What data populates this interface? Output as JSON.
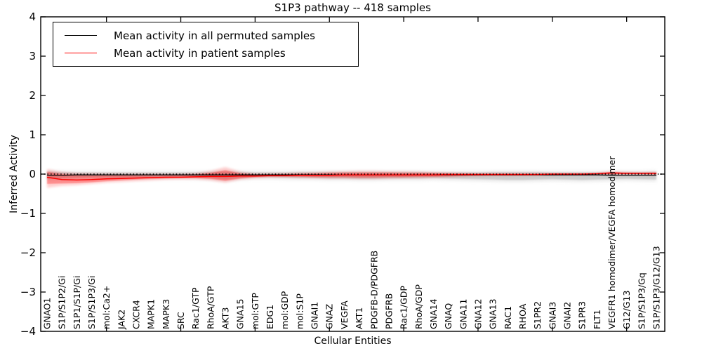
{
  "accent_colors": {
    "permuted": "#000000",
    "patient": "#ff0000",
    "permuted_band": "#a0a0a0",
    "patient_band": "#ff0000"
  },
  "header": {
    "title": "S1P3 pathway -- 418 samples"
  },
  "legend": {
    "entries": [
      {
        "label": "Mean activity in all permuted samples",
        "color": "#000000"
      },
      {
        "label": "Mean activity in patient samples",
        "color": "#ff0000"
      }
    ]
  },
  "chart_data": {
    "type": "line",
    "title": "S1P3 pathway -- 418 samples",
    "xlabel": "Cellular Entities",
    "ylabel": "Inferred Activity",
    "ylim": [
      -4,
      4
    ],
    "yticks": [
      4,
      3,
      2,
      1,
      0,
      -1,
      -2,
      -3,
      -4
    ],
    "ytick_labels": [
      "4",
      "3",
      "2",
      "1",
      "0",
      "−1",
      "−2",
      "−3",
      "−4"
    ],
    "xtick_positions": [
      4,
      9,
      14,
      19,
      24,
      29,
      34,
      39
    ],
    "grid": false,
    "legend_position": "upper left",
    "zero_line": {
      "y": 0,
      "style": "dotted",
      "color": "#000000"
    },
    "categories": [
      "GNAO1",
      "S1P/S1P2/Gi",
      "S1P1/S1P/Gi",
      "S1P/S1P3/Gi",
      "mol:Ca2+",
      "JAK2",
      "CXCR4",
      "MAPK1",
      "MAPK3",
      "SRC",
      "Rac1/GTP",
      "RhoA/GTP",
      "AKT3",
      "GNA15",
      "mol:GTP",
      "EDG1",
      "mol:GDP",
      "mol:S1P",
      "GNAI1",
      "GNAZ",
      "VEGFA",
      "AKT1",
      "PDGFB-D/PDGFRB",
      "PDGFRB",
      "Rac1/GDP",
      "RhoA/GDP",
      "GNA14",
      "GNAQ",
      "GNA11",
      "GNA12",
      "GNA13",
      "RAC1",
      "RHOA",
      "S1PR2",
      "GNAI3",
      "GNAI2",
      "S1PR3",
      "FLT1",
      "VEGFR1 homodimer/VEGFA homodimer",
      "G12/G13",
      "S1P/S1P3/Gq",
      "S1P/S1P3/G12/G13"
    ],
    "series": [
      {
        "name": "Mean activity in all permuted samples",
        "color": "#000000",
        "values": [
          -0.03,
          -0.03,
          -0.02,
          -0.02,
          -0.02,
          -0.02,
          -0.02,
          -0.02,
          -0.02,
          -0.02,
          -0.02,
          -0.02,
          -0.02,
          -0.02,
          -0.02,
          -0.02,
          -0.02,
          -0.02,
          -0.02,
          -0.02,
          -0.02,
          -0.02,
          -0.02,
          -0.02,
          -0.02,
          -0.02,
          -0.02,
          -0.02,
          -0.02,
          -0.02,
          -0.02,
          -0.02,
          -0.02,
          -0.02,
          -0.02,
          -0.02,
          -0.02,
          -0.02,
          -0.03,
          -0.03,
          -0.03,
          -0.03
        ],
        "band_upper": [
          0.06,
          0.05,
          0.04,
          0.04,
          0.04,
          0.04,
          0.04,
          0.04,
          0.04,
          0.04,
          0.04,
          0.05,
          0.06,
          0.05,
          0.04,
          0.04,
          0.04,
          0.05,
          0.05,
          0.05,
          0.05,
          0.05,
          0.05,
          0.05,
          0.05,
          0.05,
          0.04,
          0.04,
          0.04,
          0.04,
          0.05,
          0.05,
          0.05,
          0.05,
          0.04,
          0.04,
          0.04,
          0.04,
          0.05,
          0.05,
          0.05,
          0.06
        ],
        "band_lower": [
          -0.12,
          -0.1,
          -0.09,
          -0.08,
          -0.08,
          -0.08,
          -0.08,
          -0.08,
          -0.08,
          -0.08,
          -0.09,
          -0.1,
          -0.13,
          -0.1,
          -0.08,
          -0.08,
          -0.09,
          -0.1,
          -0.1,
          -0.11,
          -0.11,
          -0.12,
          -0.12,
          -0.11,
          -0.11,
          -0.11,
          -0.1,
          -0.11,
          -0.12,
          -0.13,
          -0.14,
          -0.15,
          -0.15,
          -0.14,
          -0.13,
          -0.14,
          -0.15,
          -0.14,
          -0.13,
          -0.12,
          -0.13,
          -0.14
        ]
      },
      {
        "name": "Mean activity in patient samples",
        "color": "#ff0000",
        "values": [
          -0.08,
          -0.14,
          -0.15,
          -0.14,
          -0.12,
          -0.11,
          -0.1,
          -0.09,
          -0.08,
          -0.08,
          -0.07,
          -0.06,
          -0.06,
          -0.05,
          -0.05,
          -0.04,
          -0.04,
          -0.03,
          -0.03,
          -0.03,
          -0.02,
          -0.02,
          -0.02,
          -0.02,
          -0.02,
          -0.02,
          -0.02,
          -0.01,
          -0.01,
          -0.01,
          -0.01,
          -0.01,
          -0.01,
          -0.01,
          0.0,
          0.0,
          0.0,
          0.01,
          0.03,
          0.02,
          0.02,
          0.02
        ],
        "band_outer_upper": [
          0.13,
          0.05,
          0.02,
          0.01,
          0.0,
          0.0,
          0.0,
          0.0,
          0.0,
          0.0,
          0.02,
          0.08,
          0.18,
          0.06,
          0.01,
          0.01,
          0.02,
          0.03,
          0.04,
          0.06,
          0.07,
          0.08,
          0.08,
          0.07,
          0.07,
          0.06,
          0.05,
          0.04,
          0.03,
          0.02,
          0.02,
          0.02,
          0.02,
          0.02,
          0.02,
          0.02,
          0.02,
          0.03,
          0.07,
          0.05,
          0.04,
          0.05
        ],
        "band_outer_lower": [
          -0.35,
          -0.3,
          -0.28,
          -0.25,
          -0.22,
          -0.2,
          -0.18,
          -0.16,
          -0.14,
          -0.13,
          -0.13,
          -0.16,
          -0.22,
          -0.14,
          -0.1,
          -0.08,
          -0.08,
          -0.09,
          -0.1,
          -0.11,
          -0.11,
          -0.12,
          -0.12,
          -0.11,
          -0.1,
          -0.1,
          -0.09,
          -0.08,
          -0.06,
          -0.05,
          -0.04,
          -0.04,
          -0.03,
          -0.03,
          -0.03,
          -0.02,
          -0.02,
          -0.02,
          -0.02,
          -0.02,
          -0.02,
          -0.03
        ],
        "band_inner_upper": [
          0.06,
          0.0,
          -0.02,
          -0.03,
          -0.03,
          -0.03,
          -0.03,
          -0.03,
          -0.03,
          -0.02,
          -0.01,
          0.03,
          0.1,
          0.02,
          -0.01,
          -0.01,
          0.0,
          0.01,
          0.02,
          0.03,
          0.04,
          0.04,
          0.04,
          0.04,
          0.03,
          0.03,
          0.03,
          0.02,
          0.01,
          0.01,
          0.01,
          0.01,
          0.01,
          0.01,
          0.01,
          0.01,
          0.01,
          0.02,
          0.05,
          0.03,
          0.03,
          0.03
        ],
        "band_inner_lower": [
          -0.25,
          -0.24,
          -0.23,
          -0.21,
          -0.18,
          -0.16,
          -0.14,
          -0.12,
          -0.11,
          -0.1,
          -0.1,
          -0.12,
          -0.17,
          -0.11,
          -0.08,
          -0.07,
          -0.07,
          -0.07,
          -0.08,
          -0.08,
          -0.08,
          -0.09,
          -0.09,
          -0.08,
          -0.08,
          -0.07,
          -0.07,
          -0.06,
          -0.05,
          -0.04,
          -0.03,
          -0.03,
          -0.03,
          -0.02,
          -0.02,
          -0.02,
          -0.01,
          -0.01,
          0.0,
          0.0,
          0.0,
          -0.01
        ]
      }
    ]
  }
}
